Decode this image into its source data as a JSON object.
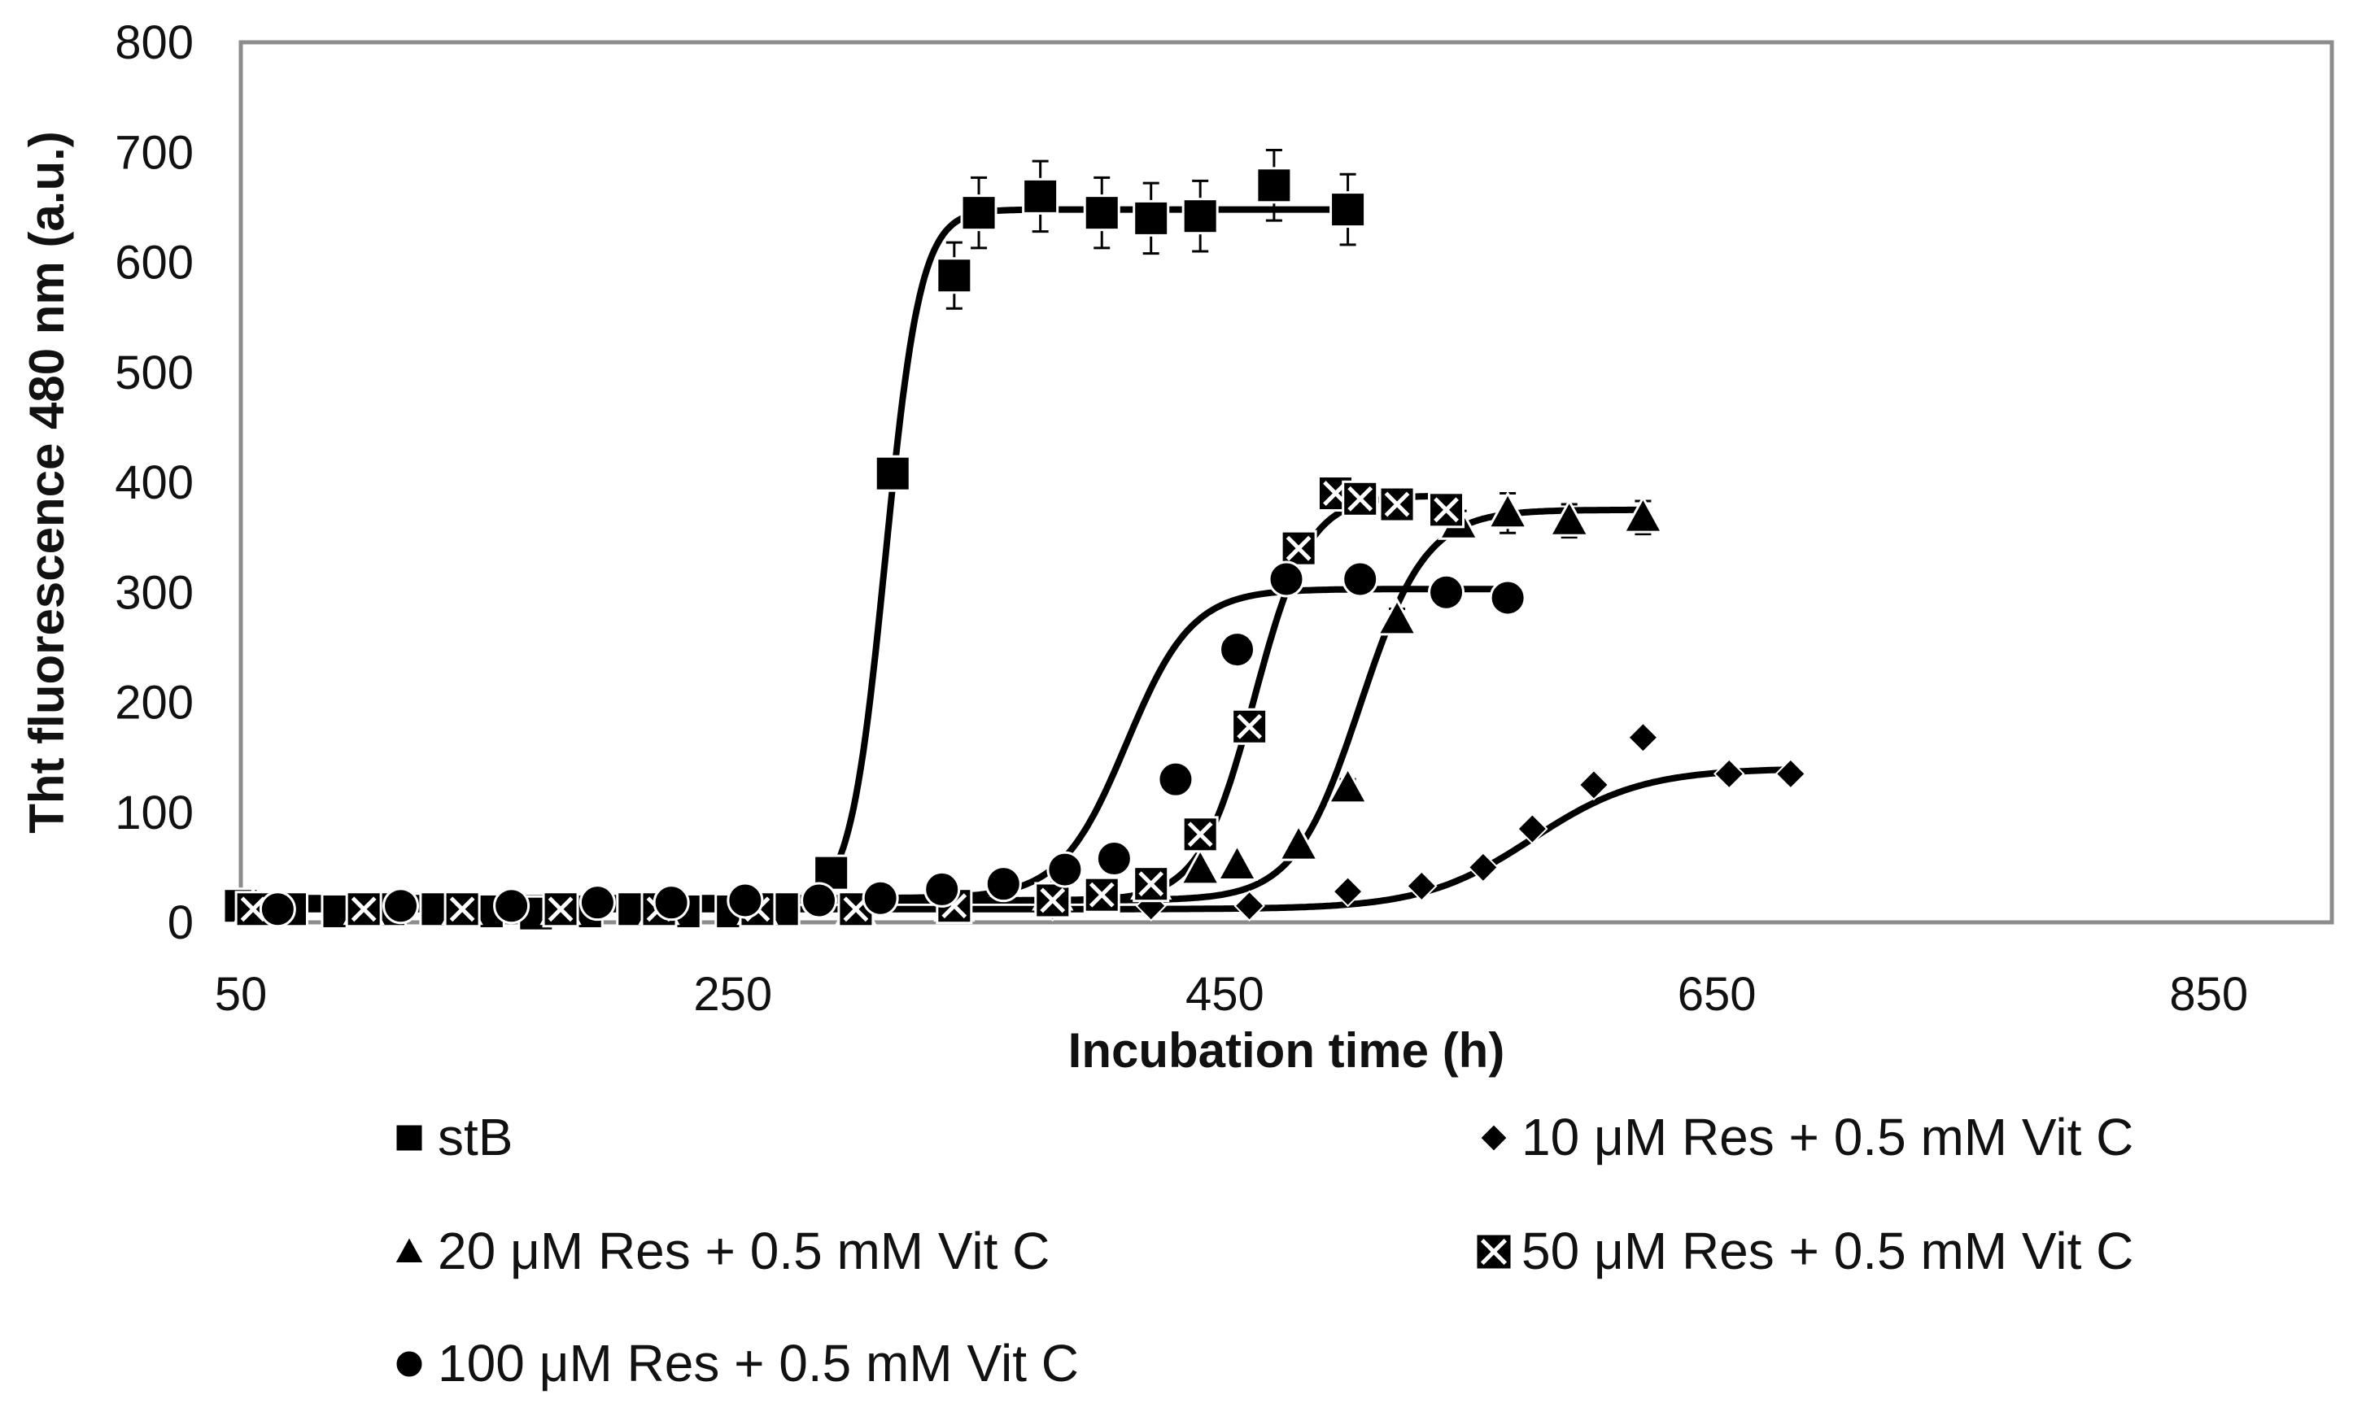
{
  "chart_data": {
    "type": "scatter",
    "title": "",
    "xlabel": "Incubation time (h)",
    "ylabel": "Tht fluorescence 480 nm (a.u.)",
    "xlim": [
      50,
      900
    ],
    "ylim": [
      0,
      800
    ],
    "xticks": [
      50,
      250,
      450,
      650,
      850
    ],
    "yticks": [
      0,
      100,
      200,
      300,
      400,
      500,
      600,
      700,
      800
    ],
    "grid": false,
    "legend_position": "bottom",
    "series": [
      {
        "name": "stB",
        "marker": "square",
        "x": [
          50,
          70,
          90,
          110,
          130,
          150,
          170,
          190,
          210,
          230,
          250,
          270,
          290,
          315,
          340,
          350,
          375,
          400,
          420,
          440,
          470,
          500
        ],
        "y": [
          15,
          12,
          10,
          12,
          12,
          10,
          8,
          10,
          12,
          10,
          10,
          12,
          45,
          408,
          588,
          645,
          660,
          645,
          640,
          642,
          670,
          648
        ],
        "error": [
          0,
          0,
          0,
          0,
          0,
          0,
          0,
          0,
          0,
          0,
          0,
          0,
          0,
          15,
          30,
          32,
          32,
          32,
          32,
          32,
          32,
          32
        ],
        "fit": {
          "base": 15,
          "top": 648,
          "mid": 312,
          "rate": 0.14
        }
      },
      {
        "name": "10 μM Res + 0.5 mM Vit C",
        "marker": "diamond",
        "x": [
          65,
          100,
          140,
          180,
          220,
          260,
          300,
          340,
          380,
          420,
          460,
          500,
          530,
          555,
          575,
          600,
          620,
          655,
          680
        ],
        "y": [
          12,
          12,
          10,
          10,
          10,
          12,
          10,
          15,
          15,
          15,
          15,
          28,
          33,
          50,
          85,
          125,
          168,
          135,
          135
        ],
        "error": [
          0,
          0,
          0,
          0,
          0,
          0,
          0,
          0,
          0,
          0,
          0,
          0,
          0,
          0,
          0,
          0,
          0,
          0,
          0
        ],
        "fit": {
          "base": 12,
          "top": 140,
          "mid": 575,
          "rate": 0.045
        }
      },
      {
        "name": "20 μM Res + 0.5 mM Vit C",
        "marker": "triangle",
        "x": [
          55,
          100,
          140,
          180,
          220,
          260,
          300,
          340,
          380,
          420,
          440,
          455,
          480,
          500,
          520,
          545,
          565,
          590,
          620
        ],
        "y": [
          12,
          12,
          12,
          12,
          12,
          12,
          12,
          15,
          25,
          35,
          48,
          52,
          70,
          122,
          275,
          362,
          372,
          365,
          368
        ],
        "error": [
          0,
          0,
          0,
          0,
          0,
          0,
          0,
          0,
          0,
          0,
          0,
          0,
          0,
          8,
          10,
          12,
          18,
          15,
          15
        ],
        "fit": {
          "base": 20,
          "top": 375,
          "mid": 505,
          "rate": 0.075
        }
      },
      {
        "name": "50 μM Res + 0.5 mM Vit C",
        "marker": "x-square",
        "x": [
          55,
          100,
          140,
          180,
          220,
          260,
          300,
          340,
          380,
          400,
          420,
          440,
          460,
          480,
          495,
          505,
          520,
          540
        ],
        "y": [
          12,
          12,
          12,
          12,
          12,
          12,
          12,
          15,
          20,
          25,
          35,
          80,
          178,
          340,
          390,
          385,
          380,
          375
        ],
        "error": [
          0,
          0,
          0,
          0,
          0,
          0,
          0,
          0,
          0,
          0,
          0,
          0,
          0,
          0,
          0,
          0,
          0,
          0
        ],
        "fit": {
          "base": 20,
          "top": 388,
          "mid": 462,
          "rate": 0.09
        }
      },
      {
        "name": "100 μM Res + 0.5 mM Vit C",
        "marker": "circle",
        "x": [
          65,
          115,
          160,
          195,
          225,
          255,
          285,
          310,
          335,
          360,
          385,
          405,
          430,
          455,
          475,
          505,
          540,
          565
        ],
        "y": [
          12,
          15,
          15,
          18,
          18,
          20,
          20,
          22,
          30,
          35,
          48,
          58,
          130,
          248,
          312,
          312,
          300,
          295
        ],
        "error": [
          0,
          0,
          0,
          0,
          0,
          0,
          0,
          0,
          0,
          0,
          0,
          0,
          0,
          0,
          0,
          0,
          0,
          0
        ],
        "fit": {
          "base": 22,
          "top": 303,
          "mid": 410,
          "rate": 0.075
        }
      }
    ]
  },
  "legend": {
    "items": [
      {
        "label": "stB",
        "marker": "square"
      },
      {
        "label": "10 μM Res + 0.5 mM Vit C",
        "marker": "diamond"
      },
      {
        "label": "20 μM Res + 0.5 mM Vit C",
        "marker": "triangle"
      },
      {
        "label": "50 μM Res + 0.5 mM Vit C",
        "marker": "x-square"
      },
      {
        "label": "100 μM Res + 0.5 mM Vit C",
        "marker": "circle"
      }
    ]
  },
  "colors": {
    "marker": "#000000",
    "plot_border": "#8c8c8c",
    "axis_text": "#111111"
  }
}
